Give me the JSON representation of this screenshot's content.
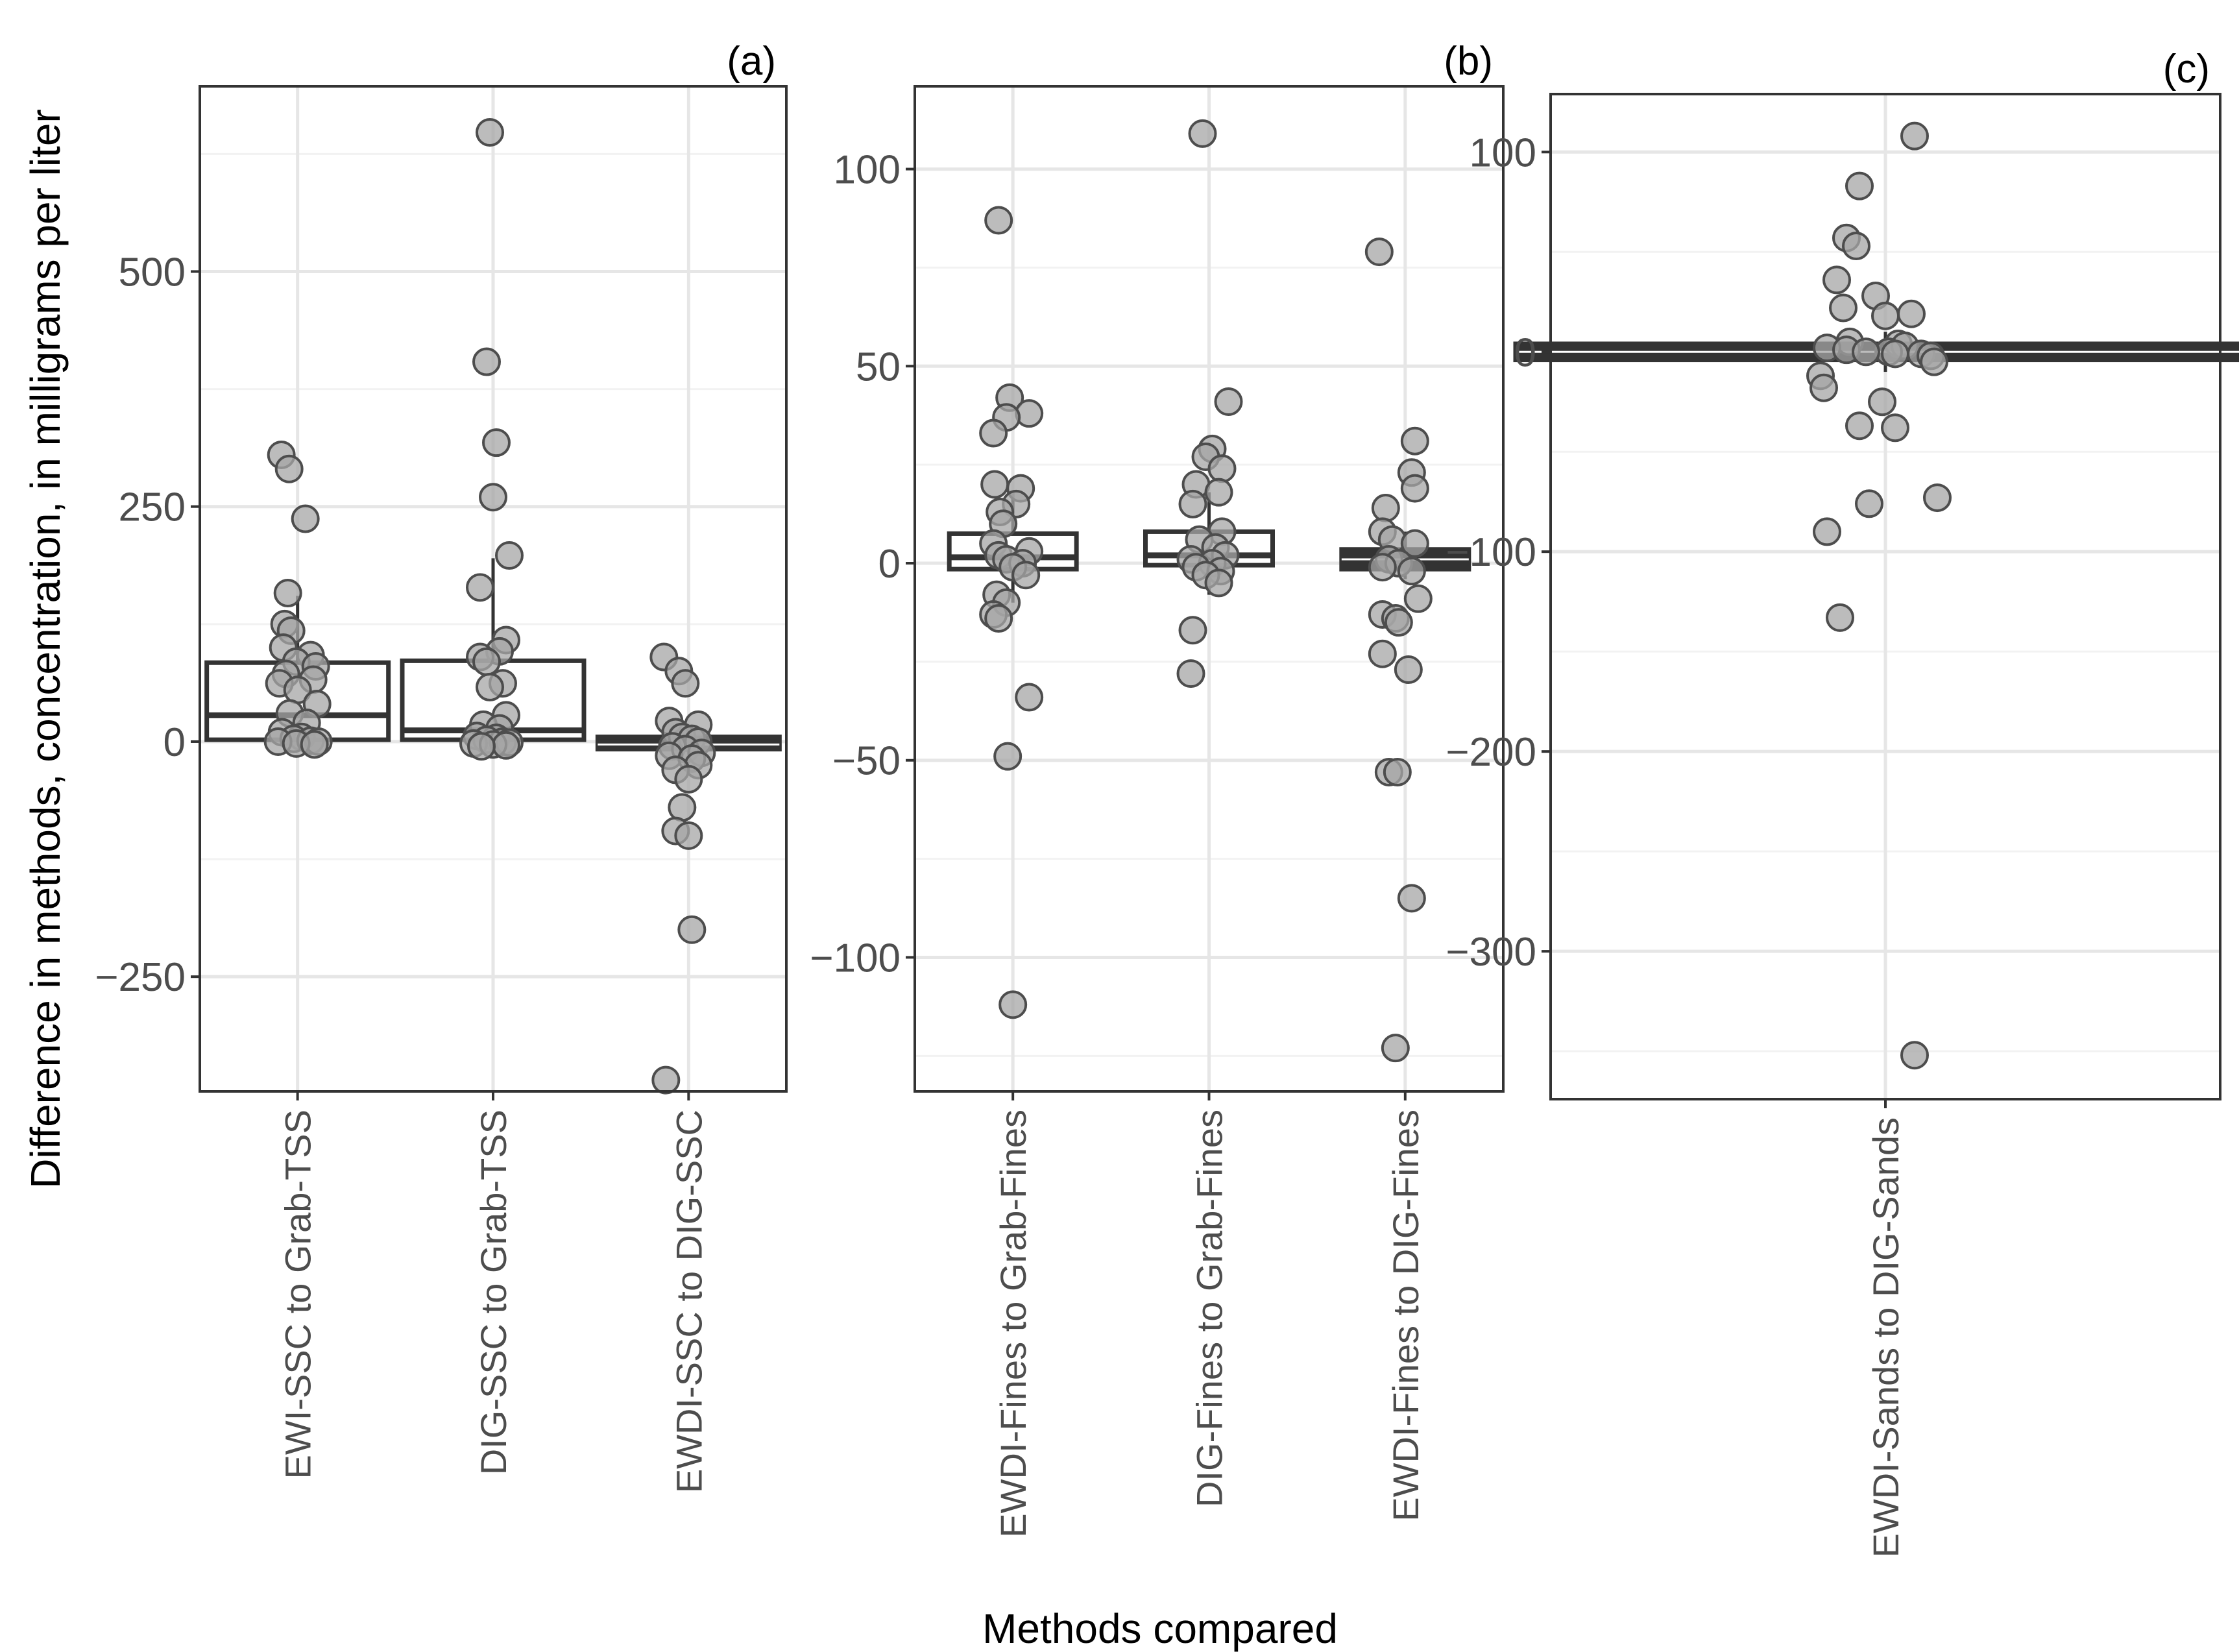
{
  "figure": {
    "ylabel": "Difference in  methods, concentration, in milligrams per liter",
    "xlabel": "Methods compared"
  },
  "colors": {
    "point_fill": "#a6a6a6",
    "point_edge": "#4d4d4d",
    "box_outline": "#333333",
    "box_fill_light": "#ffffff",
    "box_fill_dark": "#333333",
    "grid_major": "#e6e6e6",
    "grid_minor": "#f2f2f2",
    "panel_border": "#333333"
  },
  "chart_data": [
    {
      "type": "box",
      "panel_label": "(a)",
      "ylim": [
        -372,
        697
      ],
      "yticks": [
        -250,
        0,
        250,
        500
      ],
      "ytick_labels": [
        "−250",
        "0",
        "250",
        "500"
      ],
      "grid": true,
      "categories": [
        "EWI-SSC to Grab-TSS",
        "DIG-SSC to Grab-TSS",
        "EWDI-SSC to DIG-SSC"
      ],
      "boxes": [
        {
          "whislo": 0,
          "q1": 2,
          "med": 28,
          "q3": 84,
          "whishi": 155,
          "style": "light"
        },
        {
          "whislo": -2,
          "q1": 2,
          "med": 12,
          "q3": 86,
          "whishi": 195,
          "style": "light"
        },
        {
          "whislo": -10,
          "q1": -8,
          "med": -3,
          "q3": 5,
          "whishi": 12,
          "style": "dark"
        }
      ],
      "points": [
        [
          [
            -25,
            305
          ],
          [
            -13,
            290
          ],
          [
            12,
            237
          ],
          [
            -15,
            158
          ],
          [
            -20,
            125
          ],
          [
            -10,
            118
          ],
          [
            -22,
            100
          ],
          [
            20,
            92
          ],
          [
            -2,
            85
          ],
          [
            28,
            80
          ],
          [
            -18,
            72
          ],
          [
            24,
            66
          ],
          [
            -28,
            62
          ],
          [
            0,
            55
          ],
          [
            30,
            40
          ],
          [
            -12,
            30
          ],
          [
            14,
            20
          ],
          [
            -24,
            10
          ],
          [
            6,
            5
          ],
          [
            -6,
            3
          ],
          [
            20,
            1
          ],
          [
            -30,
            0
          ],
          [
            32,
            0
          ],
          [
            -2,
            -2
          ],
          [
            26,
            -3
          ]
        ],
        [
          [
            -5,
            648
          ],
          [
            -10,
            404
          ],
          [
            5,
            318
          ],
          [
            0,
            260
          ],
          [
            25,
            198
          ],
          [
            -20,
            164
          ],
          [
            20,
            108
          ],
          [
            10,
            96
          ],
          [
            -20,
            90
          ],
          [
            -10,
            85
          ],
          [
            15,
            62
          ],
          [
            -5,
            58
          ],
          [
            20,
            28
          ],
          [
            -15,
            18
          ],
          [
            10,
            14
          ],
          [
            -25,
            6
          ],
          [
            5,
            4
          ],
          [
            -10,
            2
          ],
          [
            15,
            0
          ],
          [
            25,
            -1
          ],
          [
            -30,
            -2
          ],
          [
            0,
            -3
          ],
          [
            20,
            -4
          ],
          [
            -18,
            -5
          ]
        ],
        [
          [
            -38,
            90
          ],
          [
            -15,
            75
          ],
          [
            -5,
            62
          ],
          [
            -30,
            22
          ],
          [
            15,
            18
          ],
          [
            -20,
            10
          ],
          [
            -10,
            5
          ],
          [
            5,
            3
          ],
          [
            15,
            0
          ],
          [
            -25,
            -5
          ],
          [
            -5,
            -8
          ],
          [
            20,
            -12
          ],
          [
            -30,
            -15
          ],
          [
            5,
            -18
          ],
          [
            15,
            -25
          ],
          [
            -20,
            -30
          ],
          [
            0,
            -40
          ],
          [
            -10,
            -70
          ],
          [
            -20,
            -95
          ],
          [
            0,
            -100
          ],
          [
            5,
            -200
          ],
          [
            -35,
            -360
          ]
        ]
      ]
    },
    {
      "type": "box",
      "panel_label": "(b)",
      "ylim": [
        -134,
        121
      ],
      "yticks": [
        -100,
        -50,
        0,
        50,
        100
      ],
      "ytick_labels": [
        "−100",
        "−50",
        "0",
        "50",
        "100"
      ],
      "grid": true,
      "categories": [
        "EWDI-Fines to Grab-Fines",
        "DIG-Fines to Grab-Fines",
        "EWDI-Fines to DIG-Fines"
      ],
      "boxes": [
        {
          "whislo": -10,
          "q1": -1.5,
          "med": 1.5,
          "q3": 7.5,
          "whishi": 18,
          "style": "light"
        },
        {
          "whislo": -8,
          "q1": -0.5,
          "med": 2,
          "q3": 8,
          "whishi": 18,
          "style": "light"
        },
        {
          "whislo": -4,
          "q1": -1.5,
          "med": 1,
          "q3": 3.5,
          "whishi": 8,
          "style": "dark"
        }
      ],
      "points": [
        [
          [
            -22,
            87
          ],
          [
            -5,
            42
          ],
          [
            25,
            38
          ],
          [
            -10,
            37
          ],
          [
            -30,
            33
          ],
          [
            -28,
            20
          ],
          [
            12,
            19
          ],
          [
            5,
            15
          ],
          [
            -20,
            13
          ],
          [
            -15,
            10
          ],
          [
            -30,
            5
          ],
          [
            25,
            3
          ],
          [
            -22,
            2
          ],
          [
            -10,
            1
          ],
          [
            15,
            0
          ],
          [
            0,
            -1
          ],
          [
            20,
            -3
          ],
          [
            -25,
            -8
          ],
          [
            -10,
            -10
          ],
          [
            -30,
            -13
          ],
          [
            -22,
            -14
          ],
          [
            25,
            -34
          ],
          [
            -8,
            -49
          ],
          [
            0,
            -112
          ]
        ],
        [
          [
            -10,
            109
          ],
          [
            30,
            41
          ],
          [
            5,
            29
          ],
          [
            -5,
            27
          ],
          [
            20,
            24
          ],
          [
            -20,
            20
          ],
          [
            15,
            18
          ],
          [
            -25,
            15
          ],
          [
            20,
            8
          ],
          [
            -15,
            6
          ],
          [
            10,
            4
          ],
          [
            25,
            2
          ],
          [
            -28,
            1
          ],
          [
            5,
            0
          ],
          [
            -20,
            -1
          ],
          [
            18,
            -2
          ],
          [
            -5,
            -3
          ],
          [
            15,
            -5
          ],
          [
            -25,
            -17
          ],
          [
            -28,
            -28
          ]
        ],
        [
          [
            -40,
            79
          ],
          [
            15,
            31
          ],
          [
            10,
            23
          ],
          [
            15,
            19
          ],
          [
            -30,
            14
          ],
          [
            -35,
            8
          ],
          [
            -20,
            6
          ],
          [
            15,
            5
          ],
          [
            -25,
            1
          ],
          [
            -10,
            0
          ],
          [
            -35,
            -1
          ],
          [
            10,
            -2
          ],
          [
            20,
            -9
          ],
          [
            -35,
            -13
          ],
          [
            -15,
            -14
          ],
          [
            -10,
            -15
          ],
          [
            5,
            -27
          ],
          [
            -35,
            -23
          ],
          [
            -25,
            -53
          ],
          [
            -12,
            -53
          ],
          [
            10,
            -85
          ],
          [
            -15,
            -123
          ]
        ]
      ]
    },
    {
      "type": "box",
      "panel_label": "(c)",
      "ylim": [
        -374,
        129
      ],
      "yticks": [
        -300,
        -200,
        -100,
        0,
        100
      ],
      "ytick_labels": [
        "−300",
        "−200",
        "−100",
        "0",
        "100"
      ],
      "grid": true,
      "categories": [
        "EWDI-Sands to DIG-Sands"
      ],
      "boxes": [
        {
          "whislo": -10,
          "q1": -4,
          "med": 0,
          "q3": 4,
          "whishi": 10,
          "style": "dark"
        }
      ],
      "points": [
        [
          [
            45,
            108
          ],
          [
            -40,
            83
          ],
          [
            -60,
            57
          ],
          [
            -45,
            53
          ],
          [
            -75,
            36
          ],
          [
            -15,
            28
          ],
          [
            -65,
            22
          ],
          [
            40,
            19
          ],
          [
            0,
            18
          ],
          [
            -55,
            5
          ],
          [
            20,
            4
          ],
          [
            30,
            3
          ],
          [
            -90,
            2
          ],
          [
            -60,
            1
          ],
          [
            5,
            0
          ],
          [
            -30,
            0
          ],
          [
            55,
            -1
          ],
          [
            15,
            -1
          ],
          [
            70,
            -2
          ],
          [
            75,
            -5
          ],
          [
            -100,
            -12
          ],
          [
            -95,
            -18
          ],
          [
            -5,
            -25
          ],
          [
            -40,
            -37
          ],
          [
            15,
            -38
          ],
          [
            80,
            -73
          ],
          [
            -25,
            -76
          ],
          [
            -90,
            -90
          ],
          [
            -70,
            -133
          ],
          [
            45,
            -352
          ]
        ]
      ]
    }
  ]
}
